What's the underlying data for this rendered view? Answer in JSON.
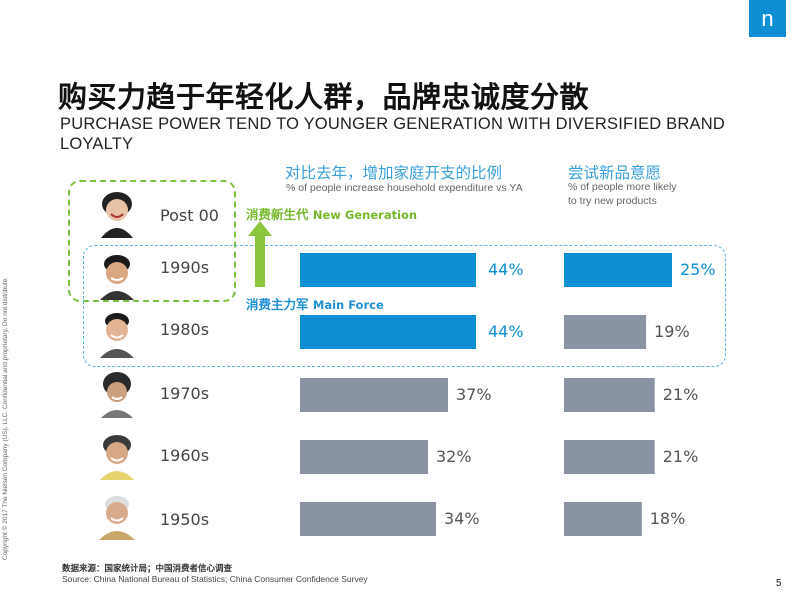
{
  "logo": {
    "glyph": "n",
    "color": "#0e8fd3"
  },
  "side_note": "Copyright © 2017 The Nielsen Company (US), LLC. Confidential and proprietary. Do not distribute.",
  "title_cn": "购买力趋于年轻化人群，品牌忠诚度分散",
  "title_en": "PURCHASE POWER TEND TO YOUNGER GENERATION WITH DIVERSIFIED BRAND LOYALTY",
  "col1": {
    "title_cn": "对比去年，增加家庭开支的比例",
    "title_en": "% of people increase household expenditure vs YA"
  },
  "col2": {
    "title_cn": "尝试新品意愿",
    "title_en_line1": "% of people more likely",
    "title_en_line2": "to try new products"
  },
  "new_generation": {
    "cn": "消费新生代",
    "en": "New Generation"
  },
  "main_force": {
    "cn": "消费主力军",
    "en": "Main Force"
  },
  "rows": [
    {
      "label": "Post 00"
    },
    {
      "label": "1990s"
    },
    {
      "label": "1980s"
    },
    {
      "label": "1970s"
    },
    {
      "label": "1960s"
    },
    {
      "label": "1950s"
    }
  ],
  "chart_data": {
    "type": "bar",
    "orientation": "horizontal",
    "categories": [
      "1990s",
      "1980s",
      "1970s",
      "1960s",
      "1950s"
    ],
    "series": [
      {
        "values": [
          44,
          44,
          37,
          32,
          34
        ],
        "labels": [
          "44%",
          "44%",
          "37%",
          "32%",
          "34%"
        ]
      },
      {
        "values": [
          25,
          19,
          21,
          21,
          18
        ],
        "labels": [
          "25%",
          "19%",
          "21%",
          "21%",
          "18%"
        ]
      }
    ],
    "highlight_color": "#0e8fd3",
    "default_color": "#8a93a3"
  },
  "source_cn": "数据来源：国家统计局；中国消费者信心调查",
  "source_en": "Source: China National Bureau of Statistics; China Consumer Confidence Survey",
  "page_number": "5"
}
